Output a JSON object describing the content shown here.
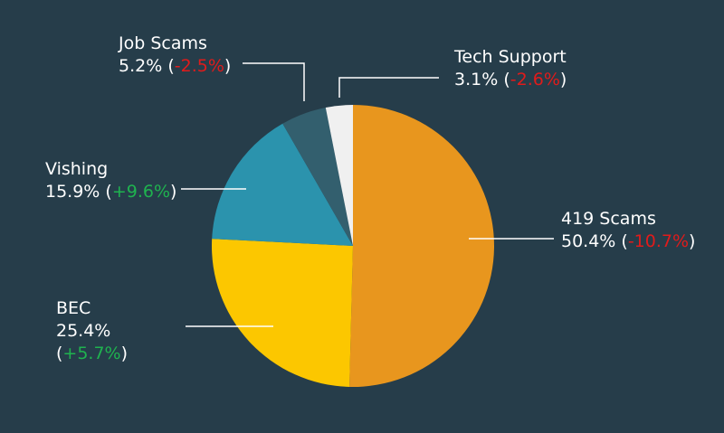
{
  "chart_data": {
    "type": "pie",
    "categories": [
      "419 Scams",
      "BEC",
      "Vishing",
      "Job Scams",
      "Tech Support"
    ],
    "values": [
      50.4,
      25.4,
      15.9,
      5.2,
      3.1
    ],
    "value_labels": [
      "50.4%",
      "25.4%",
      "15.9%",
      "5.2%",
      "3.1%"
    ],
    "changes": [
      -10.7,
      5.7,
      9.6,
      -2.5,
      -2.6
    ],
    "change_labels": [
      "-10.7%",
      "+5.7%",
      "+9.6%",
      "-2.5%",
      "-2.6%"
    ],
    "brackets": [
      "(",
      ")"
    ],
    "colors": [
      "#e8961e",
      "#fcc700",
      "#2b93ad",
      "#335f6e",
      "#f0f0f0"
    ],
    "increase_color": "#1fb34f",
    "decrease_color": "#e01b1b"
  }
}
